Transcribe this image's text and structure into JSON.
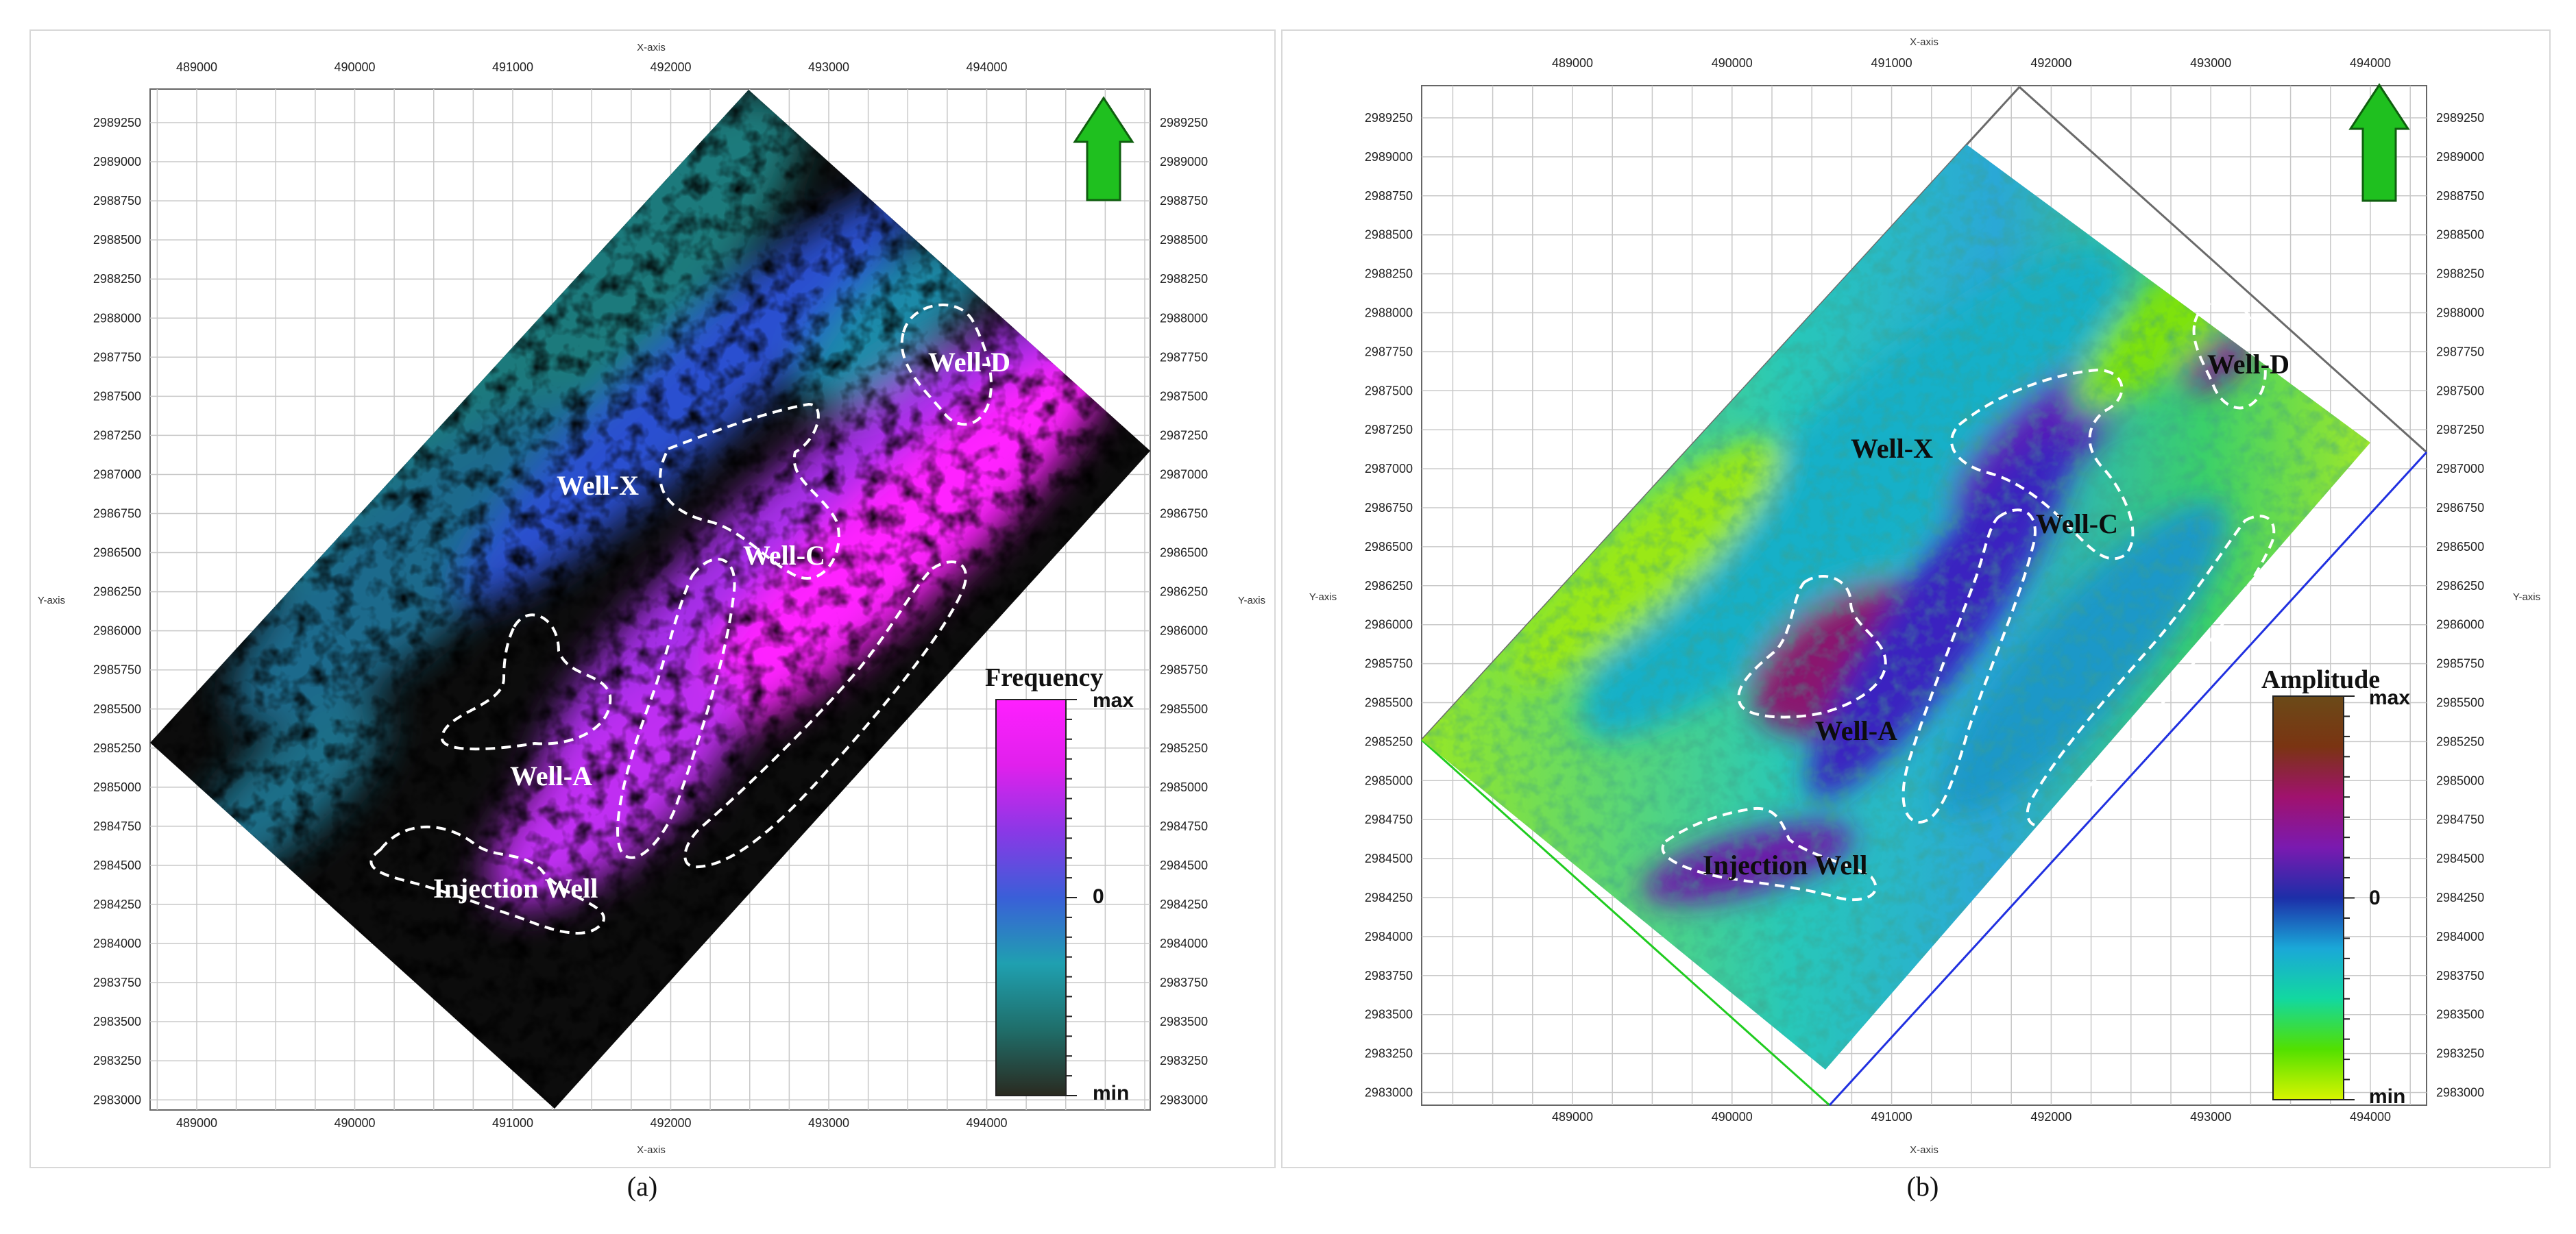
{
  "figure": {
    "panels": [
      {
        "id": "a",
        "panel_label": "(a)",
        "attribute": "Frequency",
        "x_axis_label": "X-axis",
        "y_axis_label": "Y-axis",
        "x_ticks": [
          "489000",
          "490000",
          "491000",
          "492000",
          "493000",
          "494000"
        ],
        "y_ticks": [
          "2989250",
          "2989000",
          "2988750",
          "2988500",
          "2988250",
          "2988000",
          "2987750",
          "2987500",
          "2987250",
          "2987000",
          "2986750",
          "2986500",
          "2986250",
          "2986000",
          "2985750",
          "2985500",
          "2985250",
          "2985000",
          "2984750",
          "2984500",
          "2984250",
          "2984000",
          "2983750",
          "2983500",
          "2983250",
          "2983000"
        ],
        "colorbar": {
          "title": "Frequency",
          "max_label": "max",
          "mid_label": "0",
          "min_label": "min",
          "colors": [
            "#2a2a20",
            "#1f6e6a",
            "#1fa0b0",
            "#3a5fd8",
            "#8a38e6",
            "#e020ec",
            "#ff1fff"
          ]
        },
        "wells": [
          "Well-D",
          "Well-X",
          "Well-C",
          "Well-A",
          "Injection Well"
        ],
        "north_arrow_color": "#1fc01f"
      },
      {
        "id": "b",
        "panel_label": "(b)",
        "attribute": "Amplitude",
        "x_axis_label": "X-axis",
        "y_axis_label": "Y-axis",
        "x_ticks": [
          "489000",
          "490000",
          "491000",
          "492000",
          "493000",
          "494000"
        ],
        "y_ticks": [
          "2989250",
          "2989000",
          "2988750",
          "2988500",
          "2988250",
          "2988000",
          "2987750",
          "2987500",
          "2987250",
          "2987000",
          "2986750",
          "2986500",
          "2986250",
          "2986000",
          "2985750",
          "2985500",
          "2985250",
          "2985000",
          "2984750",
          "2984500",
          "2984250",
          "2984000",
          "2983750",
          "2983500",
          "2983250",
          "2983000"
        ],
        "colorbar": {
          "title": "Amplitude",
          "max_label": "max",
          "mid_label": "0",
          "min_label": "min",
          "colors": [
            "#d8f500",
            "#52e000",
            "#12d8a0",
            "#1aa8d8",
            "#1c2ea8",
            "#7a1ab0",
            "#a0126e",
            "#7a3412",
            "#6b4a18"
          ]
        },
        "wells": [
          "Well-D",
          "Well-X",
          "Well-C",
          "Well-A",
          "Injection Well"
        ],
        "north_arrow_color": "#1fc01f"
      }
    ]
  }
}
